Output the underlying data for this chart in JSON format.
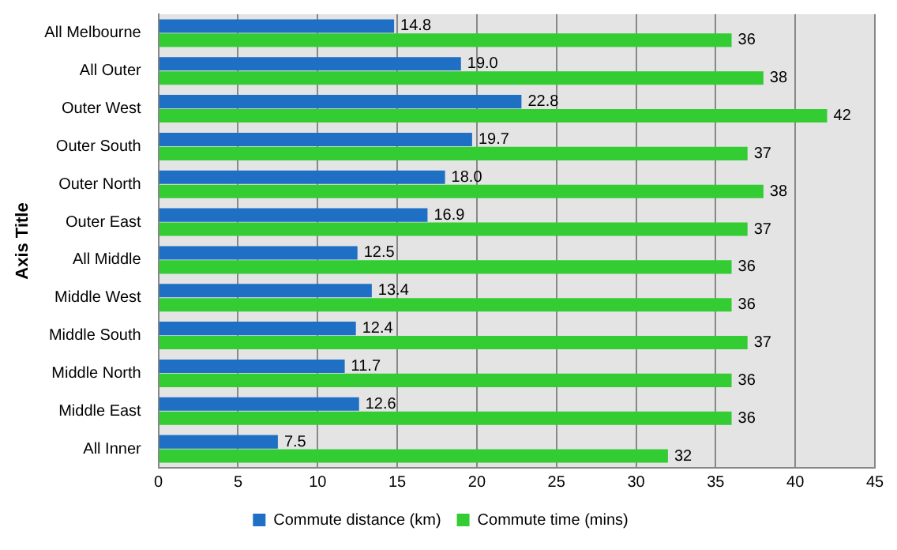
{
  "chart_data": {
    "type": "bar",
    "orientation": "horizontal",
    "ylabel": "Axis Title",
    "categories": [
      "All Melbourne",
      "All Outer",
      "Outer West",
      "Outer South",
      "Outer North",
      "Outer East",
      "All Middle",
      "Middle West",
      "Middle South",
      "Middle North",
      "Middle East",
      "All Inner"
    ],
    "series": [
      {
        "name": "Commute distance (km)",
        "color": "#1f6fc5",
        "values": [
          14.8,
          19.0,
          22.8,
          19.7,
          18.0,
          16.9,
          12.5,
          13.4,
          12.4,
          11.7,
          12.6,
          7.5
        ],
        "value_labels": [
          "14.8",
          "19.0",
          "22.8",
          "19.7",
          "18.0",
          "16.9",
          "12.5",
          "13.4",
          "12.4",
          "11.7",
          "12.6",
          "7.5"
        ]
      },
      {
        "name": "Commute time (mins)",
        "color": "#33cc33",
        "values": [
          36,
          38,
          42,
          37,
          38,
          37,
          36,
          36,
          37,
          36,
          36,
          32
        ],
        "value_labels": [
          "36",
          "38",
          "42",
          "37",
          "38",
          "37",
          "36",
          "36",
          "37",
          "36",
          "36",
          "32"
        ]
      }
    ],
    "xlim": [
      0,
      45
    ],
    "xticks": [
      0,
      5,
      10,
      15,
      20,
      25,
      30,
      35,
      40,
      45
    ],
    "grid": "x",
    "legend": "bottom"
  }
}
